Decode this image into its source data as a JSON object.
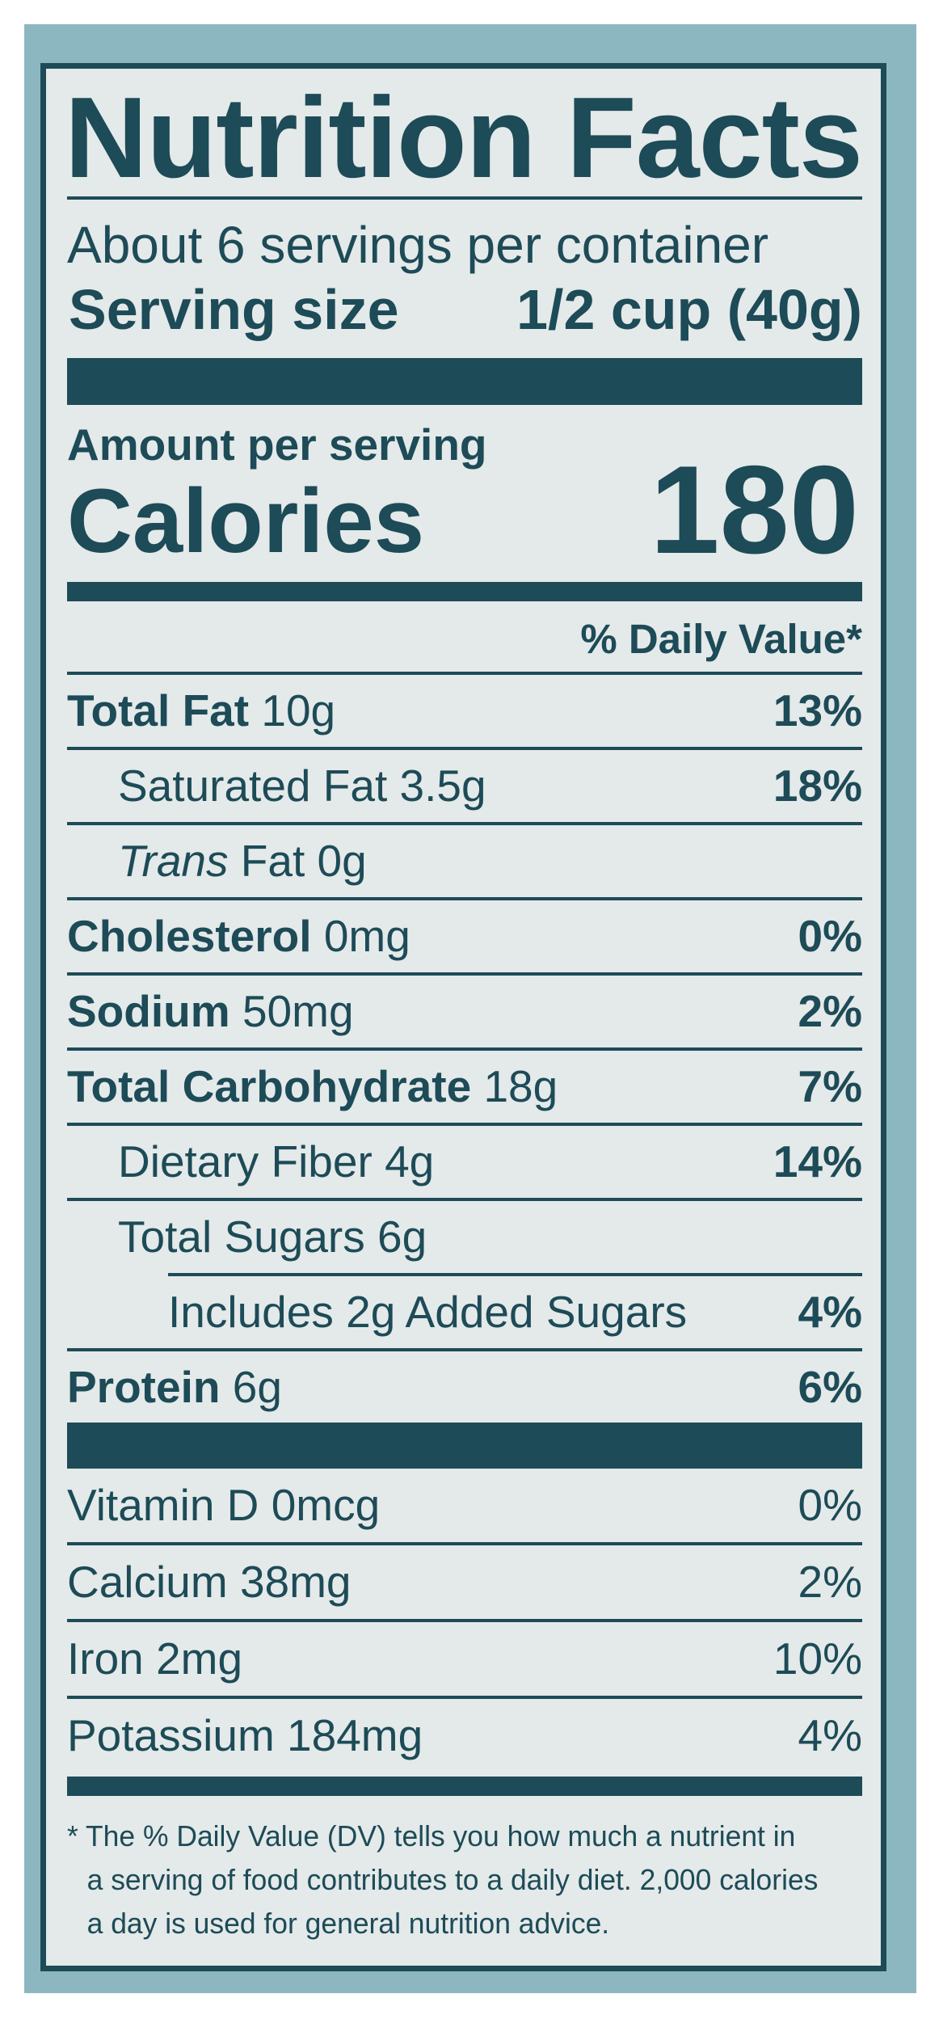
{
  "title": "Nutrition Facts",
  "servings_per_container": "About 6 servings per container",
  "serving_size": {
    "label": "Serving size",
    "value": "1/2 cup (40g)"
  },
  "amount_per_serving": "Amount per serving",
  "calories": {
    "label": "Calories",
    "value": "180"
  },
  "daily_value_header": "% Daily Value*",
  "nutrients": [
    {
      "name": "Total Fat",
      "amount": "10g",
      "dv": "13%"
    },
    {
      "name": "Saturated Fat",
      "amount": "3.5g",
      "dv": "18%"
    },
    {
      "name_italic": "Trans",
      "name": "Fat",
      "amount": "0g",
      "dv": ""
    },
    {
      "name": "Cholesterol",
      "amount": "0mg",
      "dv": "0%"
    },
    {
      "name": "Sodium",
      "amount": "50mg",
      "dv": "2%"
    },
    {
      "name": "Total Carbohydrate",
      "amount": "18g",
      "dv": "7%"
    },
    {
      "name": "Dietary Fiber",
      "amount": "4g",
      "dv": "14%"
    },
    {
      "name": "Total Sugars",
      "amount": "6g",
      "dv": ""
    },
    {
      "name": "Includes 2g Added Sugars",
      "amount": "",
      "dv": "4%"
    },
    {
      "name": "Protein",
      "amount": "6g",
      "dv": "6%"
    }
  ],
  "vitamins": [
    {
      "name": "Vitamin D",
      "amount": "0mcg",
      "dv": "0%"
    },
    {
      "name": "Calcium",
      "amount": "38mg",
      "dv": "2%"
    },
    {
      "name": "Iron",
      "amount": "2mg",
      "dv": "10%"
    },
    {
      "name": "Potassium",
      "amount": "184mg",
      "dv": "4%"
    }
  ],
  "footnote": [
    "* The % Daily Value (DV) tells you how much a nutrient in",
    "a serving of food contributes to a daily diet. 2,000 calories",
    "a day is used for general nutrition advice."
  ],
  "colors": {
    "ink": "#1d4b57",
    "panel": "#e4e9e9",
    "background": "#8cb7c0"
  }
}
